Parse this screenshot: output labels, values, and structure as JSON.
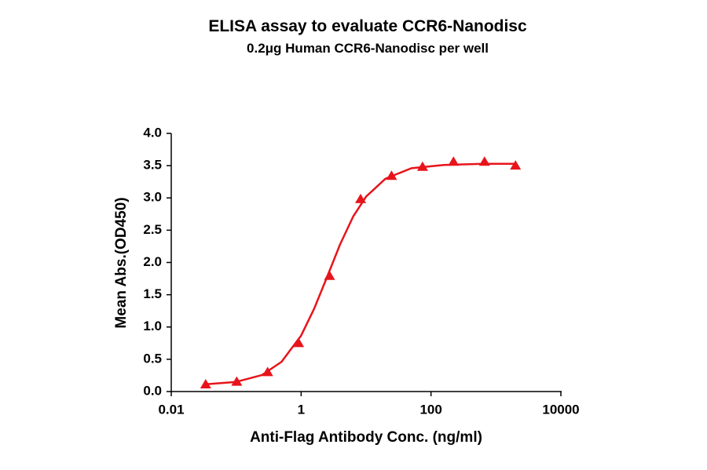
{
  "chart_data": {
    "type": "scatter",
    "title": "ELISA assay to evaluate CCR6-Nanodisc",
    "subtitle": "0.2μg Human CCR6-Nanodisc per well",
    "x_label": "Anti-Flag Antibody Conc. (ng/ml)",
    "y_label": "Mean Abs.(OD450)",
    "x_scale": "log",
    "xlim": [
      0.01,
      10000
    ],
    "xticks": [
      0.01,
      1,
      100,
      10000
    ],
    "ylim": [
      0,
      4
    ],
    "yticks": [
      {
        "value": 0,
        "label": "0.0"
      },
      {
        "value": 0.5,
        "label": "0.5"
      },
      {
        "value": 1,
        "label": "1.0"
      },
      {
        "value": 1.5,
        "label": "1.5"
      },
      {
        "value": 2,
        "label": "2.0"
      },
      {
        "value": 2.5,
        "label": "2.5"
      },
      {
        "value": 3,
        "label": "3.0"
      },
      {
        "value": 3.5,
        "label": "3.5"
      },
      {
        "value": 4,
        "label": "4.0"
      }
    ],
    "color": "#e8141b",
    "points": {
      "x": [
        0.0339,
        0.102,
        0.305,
        0.914,
        2.74,
        8.23,
        24.7,
        74.1,
        222,
        667,
        2000
      ],
      "values": [
        0.11,
        0.15,
        0.3,
        0.75,
        1.79,
        2.98,
        3.34,
        3.48,
        3.56,
        3.56,
        3.5
      ]
    },
    "fit": {
      "x": [
        0.0339,
        0.1,
        0.25,
        0.5,
        1,
        1.58,
        2.51,
        3.98,
        6.31,
        10,
        20,
        50,
        158,
        631,
        2000
      ],
      "values": [
        0.112,
        0.149,
        0.257,
        0.461,
        0.867,
        1.28,
        1.776,
        2.28,
        2.71,
        3.02,
        3.3,
        3.46,
        3.51,
        3.53,
        3.53
      ]
    }
  }
}
